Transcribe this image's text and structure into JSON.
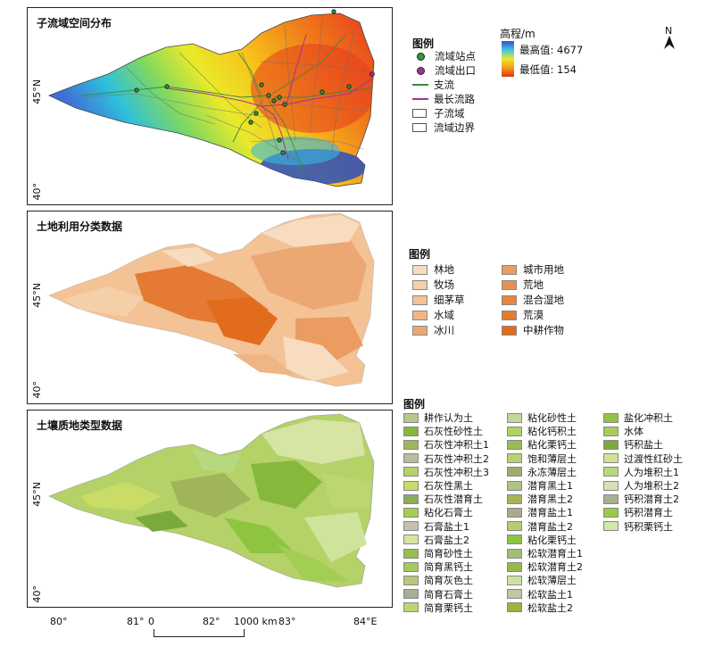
{
  "panel1": {
    "title": "子流域空间分布"
  },
  "panel2": {
    "title": "土地利用分类数据"
  },
  "panel3": {
    "title": "土壤质地类型数据"
  },
  "lat_labels": {
    "top": "45°N",
    "bottom": "40°"
  },
  "lon_labels": [
    "80°",
    "81°",
    "82°",
    "83°",
    "84°E"
  ],
  "legend1": {
    "title": "图例",
    "items": [
      {
        "label": "流域站点",
        "icon": "green-dot"
      },
      {
        "label": "流域出口",
        "icon": "purple-dot"
      },
      {
        "label": "支流",
        "icon": "green-line"
      },
      {
        "label": "最长流路",
        "icon": "purple-line"
      },
      {
        "label": "子流域",
        "icon": "box"
      },
      {
        "label": "流域边界",
        "icon": "box"
      }
    ]
  },
  "elevation": {
    "title": "高程/m",
    "max_label": "最高值: 4677",
    "min_label": "最低值: 154"
  },
  "north": {
    "label": "N"
  },
  "legend2": {
    "title": "图例",
    "col1": [
      {
        "label": "林地",
        "color": "#f7dcc0"
      },
      {
        "label": "牧场",
        "color": "#f5cfa8"
      },
      {
        "label": "细茅草",
        "color": "#f3c295"
      },
      {
        "label": "水域",
        "color": "#f0b585"
      },
      {
        "label": "冰川",
        "color": "#eda772"
      }
    ],
    "col2": [
      {
        "label": "城市用地",
        "color": "#eb9c60"
      },
      {
        "label": "荒地",
        "color": "#e99050"
      },
      {
        "label": "混合湿地",
        "color": "#e78542"
      },
      {
        "label": "荒漠",
        "color": "#e47a34"
      },
      {
        "label": "中耕作物",
        "color": "#e06c1c"
      }
    ]
  },
  "legend3": {
    "title": "图例",
    "col1": [
      {
        "label": "耕作认为土",
        "color": "#b9c88a"
      },
      {
        "label": "石灰性砂性土",
        "color": "#86b83c"
      },
      {
        "label": "石灰性冲积土1",
        "color": "#a0b45a"
      },
      {
        "label": "石灰性冲积土2",
        "color": "#b8bca0"
      },
      {
        "label": "石灰性冲积土3",
        "color": "#b4d268"
      },
      {
        "label": "石灰性黑土",
        "color": "#c8dc66"
      },
      {
        "label": "石灰性潜育土",
        "color": "#8cac5a"
      },
      {
        "label": "粘化石膏土",
        "color": "#a2ce52"
      },
      {
        "label": "石膏盐土1",
        "color": "#c2c2ae"
      },
      {
        "label": "石膏盐土2",
        "color": "#d6e4a4"
      },
      {
        "label": "简育砂性土",
        "color": "#96be50"
      },
      {
        "label": "简育黑钙土",
        "color": "#a6c860"
      },
      {
        "label": "简育灰色土",
        "color": "#bec47a"
      },
      {
        "label": "简育石膏土",
        "color": "#a6ae94"
      },
      {
        "label": "简育栗钙土",
        "color": "#bcd672"
      }
    ],
    "col2": [
      {
        "label": "粘化砂性土",
        "color": "#c4d69a"
      },
      {
        "label": "粘化钙积土",
        "color": "#aed462"
      },
      {
        "label": "粘化栗钙土",
        "color": "#9aba58"
      },
      {
        "label": "饱和薄层土",
        "color": "#bad076"
      },
      {
        "label": "永冻薄层土",
        "color": "#a4a870"
      },
      {
        "label": "潜育黑土1",
        "color": "#aec482"
      },
      {
        "label": "潜育黑土2",
        "color": "#aab25a"
      },
      {
        "label": "潜育盐土1",
        "color": "#a8aa8c"
      },
      {
        "label": "潜育盐土2",
        "color": "#b6cc70"
      },
      {
        "label": "粘化栗钙土",
        "color": "#8ec440"
      },
      {
        "label": "松软潜育土1",
        "color": "#a2be72"
      },
      {
        "label": "松软潜育土2",
        "color": "#98b84c"
      },
      {
        "label": "松软薄层土",
        "color": "#cee49c"
      },
      {
        "label": "松软盐土1",
        "color": "#c2c6a4"
      },
      {
        "label": "松软盐土2",
        "color": "#9ab43e"
      }
    ],
    "col3": [
      {
        "label": "盐化冲积土",
        "color": "#94c444"
      },
      {
        "label": "水体",
        "color": "#aacc5a"
      },
      {
        "label": "钙积盐土",
        "color": "#7aaa3c"
      },
      {
        "label": "过渡性红砂土",
        "color": "#d4e296"
      },
      {
        "label": "人为堆积土1",
        "color": "#b8d880"
      },
      {
        "label": "人为堆积土2",
        "color": "#d4e2b4"
      },
      {
        "label": "钙积潜育土2",
        "color": "#a8b092"
      },
      {
        "label": "钙积潜育土",
        "color": "#98cc48"
      },
      {
        "label": "钙积栗钙土",
        "color": "#d0e8a8"
      }
    ]
  },
  "scale": {
    "start": "0",
    "end": "1000 km"
  }
}
